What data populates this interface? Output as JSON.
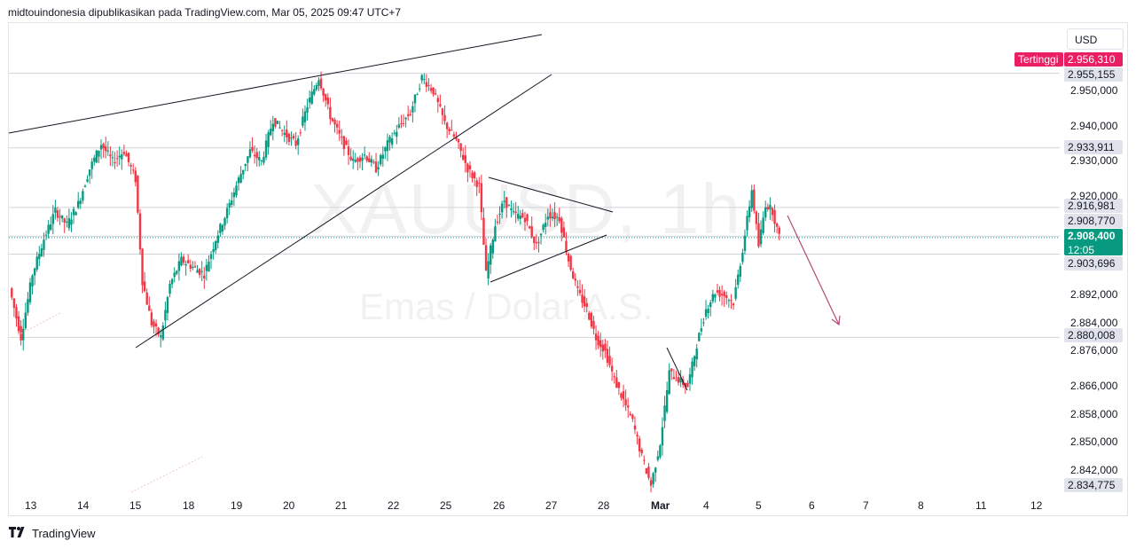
{
  "header": {
    "text": "midtouindonesia dipublikasikan pada TradingView.com, Mar 05, 2025 09:47 UTC+7"
  },
  "watermark": {
    "ticker": "XAUUSD, 1h",
    "description": "Emas / Dolar A.S."
  },
  "currency": "USD",
  "footer": {
    "brand": "TradingView",
    "logo_icon": "tradingview-logo-icon"
  },
  "colors": {
    "up": "#089981",
    "down": "#f23645",
    "high_badge": "#e91e63",
    "current_price": "#089981",
    "level_label_bg": "#e0e3eb",
    "arrow": "#b04a7a"
  },
  "price_labels": {
    "high_tag": "Tertinggi",
    "high_value": "2.956,310",
    "level_1": "2.955,155",
    "level_2": "2.933,911",
    "level_3": "2.916,981",
    "level_4": "2.908,770",
    "current_value": "2.908,400",
    "countdown": "12:05",
    "level_5": "2.903,696",
    "level_6": "2.880,008",
    "level_7": "2.834,775"
  },
  "chart_data": {
    "type": "candlestick",
    "symbol": "XAUUSD",
    "timeframe": "1h",
    "ylim": [
      2832,
      2962
    ],
    "y_ticks": [
      "2.950,000",
      "2.940,000",
      "2.930,000",
      "2.920,000",
      "2.892,000",
      "2.884,000",
      "2.876,000",
      "2.866,000",
      "2.858,000",
      "2.850,000",
      "2.842,000"
    ],
    "y_tick_values": [
      2950,
      2940,
      2930,
      2920,
      2892,
      2884,
      2876,
      2866,
      2858,
      2850,
      2842
    ],
    "x_ticks": [
      "13",
      "14",
      "15",
      "18",
      "19",
      "20",
      "21",
      "22",
      "25",
      "26",
      "27",
      "28",
      "Mar",
      "4",
      "5",
      "6",
      "7",
      "8",
      "11",
      "12"
    ],
    "horizontal_levels": [
      2955.155,
      2933.911,
      2916.981,
      2908.77,
      2903.696,
      2880.008
    ],
    "current_price": 2908.4,
    "session_high": 2956.31,
    "session_low": 2834.775,
    "price_path": [
      [
        0,
        2894
      ],
      [
        5,
        2880
      ],
      [
        10,
        2898
      ],
      [
        15,
        2908
      ],
      [
        20,
        2916
      ],
      [
        25,
        2912
      ],
      [
        30,
        2918
      ],
      [
        35,
        2928
      ],
      [
        40,
        2935
      ],
      [
        45,
        2930
      ],
      [
        50,
        2933
      ],
      [
        55,
        2925
      ],
      [
        58,
        2896
      ],
      [
        62,
        2884
      ],
      [
        66,
        2880
      ],
      [
        70,
        2895
      ],
      [
        75,
        2902
      ],
      [
        80,
        2900
      ],
      [
        85,
        2898
      ],
      [
        90,
        2908
      ],
      [
        95,
        2916
      ],
      [
        100,
        2925
      ],
      [
        105,
        2933
      ],
      [
        110,
        2930
      ],
      [
        115,
        2942
      ],
      [
        120,
        2938
      ],
      [
        125,
        2935
      ],
      [
        130,
        2946
      ],
      [
        135,
        2954
      ],
      [
        140,
        2943
      ],
      [
        145,
        2936
      ],
      [
        150,
        2930
      ],
      [
        155,
        2932
      ],
      [
        160,
        2928
      ],
      [
        165,
        2935
      ],
      [
        170,
        2940
      ],
      [
        175,
        2944
      ],
      [
        180,
        2954
      ],
      [
        185,
        2950
      ],
      [
        190,
        2941
      ],
      [
        195,
        2936
      ],
      [
        200,
        2928
      ],
      [
        205,
        2923
      ],
      [
        208,
        2898
      ],
      [
        212,
        2912
      ],
      [
        216,
        2919
      ],
      [
        220,
        2915
      ],
      [
        225,
        2914
      ],
      [
        230,
        2906
      ],
      [
        235,
        2915
      ],
      [
        240,
        2914
      ],
      [
        244,
        2902
      ],
      [
        248,
        2893
      ],
      [
        252,
        2888
      ],
      [
        256,
        2880
      ],
      [
        260,
        2876
      ],
      [
        264,
        2868
      ],
      [
        268,
        2862
      ],
      [
        272,
        2856
      ],
      [
        276,
        2846
      ],
      [
        280,
        2838
      ],
      [
        284,
        2850
      ],
      [
        288,
        2870
      ],
      [
        292,
        2868
      ],
      [
        296,
        2866
      ],
      [
        300,
        2878
      ],
      [
        304,
        2888
      ],
      [
        308,
        2893
      ],
      [
        312,
        2892
      ],
      [
        316,
        2890
      ],
      [
        320,
        2905
      ],
      [
        324,
        2922
      ],
      [
        327,
        2906
      ],
      [
        330,
        2918
      ],
      [
        333,
        2916
      ],
      [
        336,
        2908.4
      ]
    ],
    "annotations": [
      {
        "type": "trendline",
        "description": "rising resistance"
      },
      {
        "type": "trendline",
        "description": "rising support"
      },
      {
        "type": "trendline",
        "description": "triangle upper"
      },
      {
        "type": "trendline",
        "description": "triangle lower"
      },
      {
        "type": "arrow",
        "description": "projected decline"
      }
    ]
  }
}
